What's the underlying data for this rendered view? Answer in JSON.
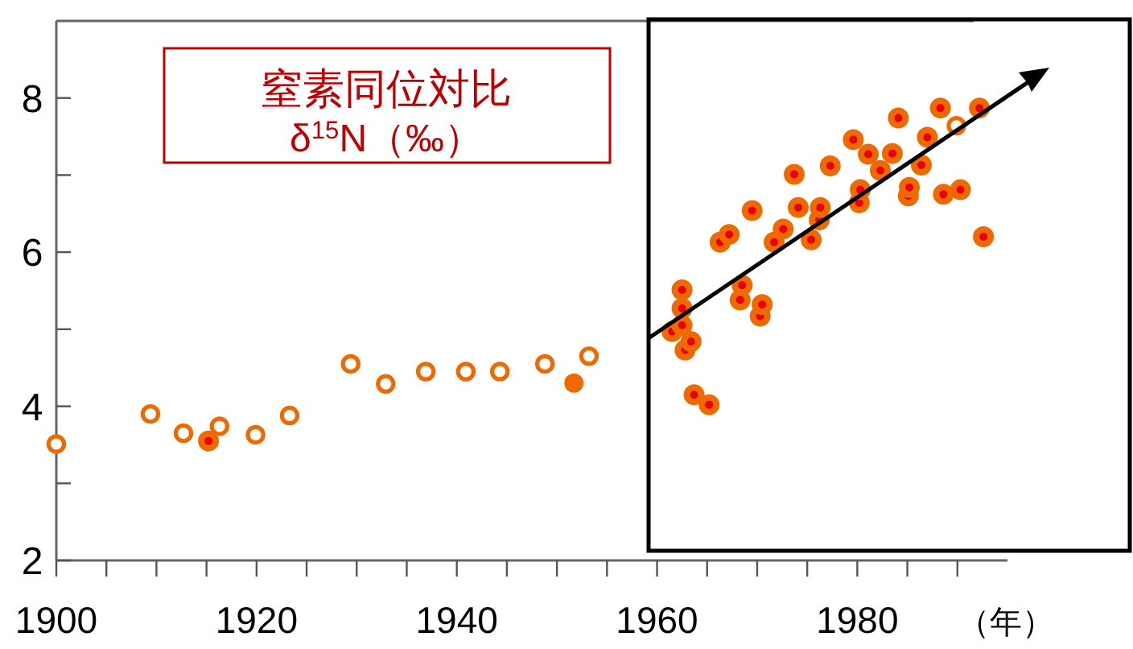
{
  "chart_data": {
    "type": "scatter",
    "title": "窒素同位対比",
    "subtitle": "δ$^{15}$N（‰）",
    "xlabel": "（年）",
    "xlim": [
      1900,
      1995
    ],
    "ylim": [
      2,
      9
    ],
    "xticks": [
      1900,
      {
        "value": 1905,
        "label": null
      },
      {
        "value": 1910,
        "label": null
      },
      {
        "value": 1915,
        "label": null
      },
      1920,
      {
        "value": 1925,
        "label": null
      },
      {
        "value": 1930,
        "label": null
      },
      {
        "value": 1935,
        "label": null
      },
      1940,
      {
        "value": 1945,
        "label": null
      },
      {
        "value": 1950,
        "label": null
      },
      {
        "value": 1955,
        "label": null
      },
      1960,
      {
        "value": 1965,
        "label": null
      },
      {
        "value": 1970,
        "label": null
      },
      {
        "value": 1975,
        "label": null
      },
      1980,
      {
        "value": 1985,
        "label": null
      },
      {
        "value": 1990,
        "label": null
      }
    ],
    "yticks": [
      2,
      {
        "value": 3,
        "label": null
      },
      4,
      {
        "value": 5,
        "label": null
      },
      6,
      {
        "value": 7,
        "label": null
      },
      8
    ],
    "marker": "circle",
    "grid": false,
    "series": [
      {
        "color": "#ee6a00",
        "x": [
          1900,
          1909.4,
          1912.7,
          1916.3,
          1919.9,
          1923.3,
          1929.4,
          1932.9,
          1936.9,
          1940.9,
          1944.3,
          1948.8,
          1953.2,
          1989.9
        ],
        "values": [
          3.51,
          3.9,
          3.65,
          3.74,
          3.63,
          3.88,
          4.55,
          4.29,
          4.45,
          4.45,
          4.45,
          4.55,
          4.65,
          7.64
        ]
      },
      {
        "color": "#ee6a00",
        "x": [
          1951.7
        ],
        "values": [
          4.3
        ]
      },
      {
        "color": "#e60012",
        "x": [
          1915.2,
          1961.5,
          1962.5,
          1962.5,
          1962.5,
          1962.8,
          1963.4,
          1963.7,
          1965.2,
          1966.3,
          1967.2,
          1968.3,
          1968.5,
          1969.5,
          1970.3,
          1970.5,
          1971.7,
          1972.6,
          1973.7,
          1974.1,
          1975.4,
          1976.2,
          1976.3,
          1977.3,
          1979.6,
          1980.2,
          1980.3,
          1981.1,
          1982.3,
          1983.5,
          1984.1,
          1985.1,
          1985.2,
          1986.4,
          1987,
          1988.3,
          1988.6,
          1990.3,
          1992.2,
          1992.6
        ],
        "values": [
          3.55,
          4.97,
          5.51,
          5.27,
          5.05,
          4.73,
          4.84,
          4.15,
          4.02,
          6.13,
          6.23,
          5.38,
          5.57,
          6.54,
          5.17,
          5.32,
          6.13,
          6.3,
          7.01,
          6.58,
          6.16,
          6.42,
          6.58,
          7.12,
          7.46,
          6.64,
          6.81,
          7.27,
          7.06,
          7.28,
          7.74,
          6.73,
          6.84,
          7.13,
          7.49,
          7.87,
          6.75,
          6.81,
          7.87,
          6.2
        ]
      }
    ]
  }
}
